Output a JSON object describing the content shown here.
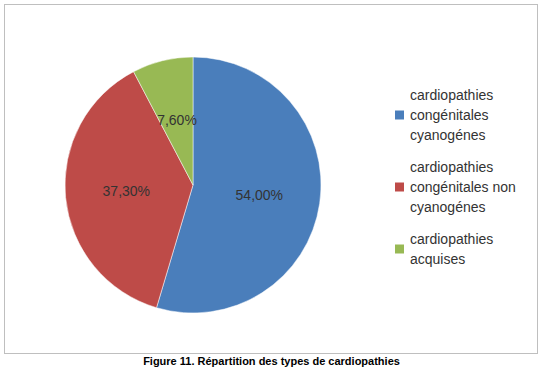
{
  "chart_data": {
    "type": "pie",
    "title": "Figure 11. Répartition des types de cardiopathies",
    "categories": [
      "cardiopathies congénitales cyanogénes",
      "cardiopathies congénitales non cyanogénes",
      "cardiopathies acquises"
    ],
    "values": [
      54,
      37.3,
      7.6
    ],
    "value_labels": [
      "54,00%",
      "37,30%",
      "7,60%"
    ],
    "colors": [
      "#4a7ebb",
      "#be4b48",
      "#98b954"
    ],
    "data_labels": true,
    "legend": "right"
  }
}
